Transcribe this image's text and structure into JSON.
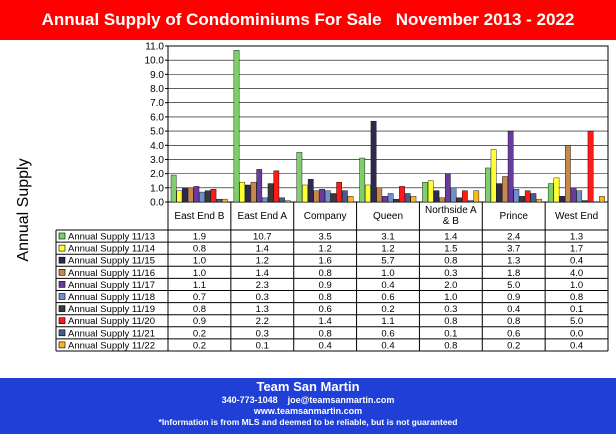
{
  "header": {
    "title": "Annual Supply of Condominiums For Sale   November 2013 - 2022"
  },
  "chart_data": {
    "type": "bar",
    "ylabel": "Annual Supply",
    "ylim": [
      0,
      11
    ],
    "yticks": [
      "0.0",
      "1.0",
      "2.0",
      "3.0",
      "4.0",
      "5.0",
      "6.0",
      "7.0",
      "8.0",
      "9.0",
      "10.0",
      "11.0"
    ],
    "grid": true,
    "legend": "table-below",
    "categories": [
      "East End B",
      "East End A",
      "Company",
      "Queen",
      "Northside A & B",
      "Prince",
      "West End"
    ],
    "category_lines": [
      [
        "East End B"
      ],
      [
        "East End A"
      ],
      [
        "Company"
      ],
      [
        "Queen"
      ],
      [
        "Northside A",
        "& B"
      ],
      [
        "Prince"
      ],
      [
        "West End"
      ]
    ],
    "series": [
      {
        "name": "Annual Supply 11/13",
        "color": "#7ecf6a",
        "values": [
          1.9,
          10.7,
          3.5,
          3.1,
          1.4,
          2.4,
          1.3
        ]
      },
      {
        "name": "Annual Supply 11/14",
        "color": "#ffff33",
        "values": [
          0.8,
          1.4,
          1.2,
          1.2,
          1.5,
          3.7,
          1.7
        ]
      },
      {
        "name": "Annual Supply 11/15",
        "color": "#2e2a4f",
        "values": [
          1.0,
          1.2,
          1.6,
          5.7,
          0.8,
          1.3,
          0.4
        ]
      },
      {
        "name": "Annual Supply 11/16",
        "color": "#c9884b",
        "values": [
          1.0,
          1.4,
          0.8,
          1.0,
          0.3,
          1.8,
          4.0
        ]
      },
      {
        "name": "Annual Supply 11/17",
        "color": "#6a3b9e",
        "values": [
          1.1,
          2.3,
          0.9,
          0.4,
          2.0,
          5.0,
          1.0
        ]
      },
      {
        "name": "Annual Supply 11/18",
        "color": "#6f8fcf",
        "values": [
          0.7,
          0.3,
          0.8,
          0.6,
          1.0,
          0.9,
          0.8
        ]
      },
      {
        "name": "Annual Supply 11/19",
        "color": "#3a3a3a",
        "values": [
          0.8,
          1.3,
          0.6,
          0.2,
          0.3,
          0.4,
          0.1
        ]
      },
      {
        "name": "Annual Supply 11/20",
        "color": "#ff1a1a",
        "values": [
          0.9,
          2.2,
          1.4,
          1.1,
          0.8,
          0.8,
          5.0
        ]
      },
      {
        "name": "Annual Supply 11/21",
        "color": "#4a5a8f",
        "values": [
          0.2,
          0.3,
          0.8,
          0.6,
          0.1,
          0.6,
          0.0
        ]
      },
      {
        "name": "Annual Supply 11/22",
        "color": "#f5b820",
        "values": [
          0.2,
          0.1,
          0.4,
          0.4,
          0.8,
          0.2,
          0.4
        ]
      }
    ]
  },
  "footer": {
    "team": "Team San Martin",
    "contact": "340-773-1048    joe@teamsanmartin.com",
    "website": "www.teamsanmartin.com",
    "disclaimer": "*Information is from MLS and deemed to be reliable, but is not guaranteed"
  }
}
